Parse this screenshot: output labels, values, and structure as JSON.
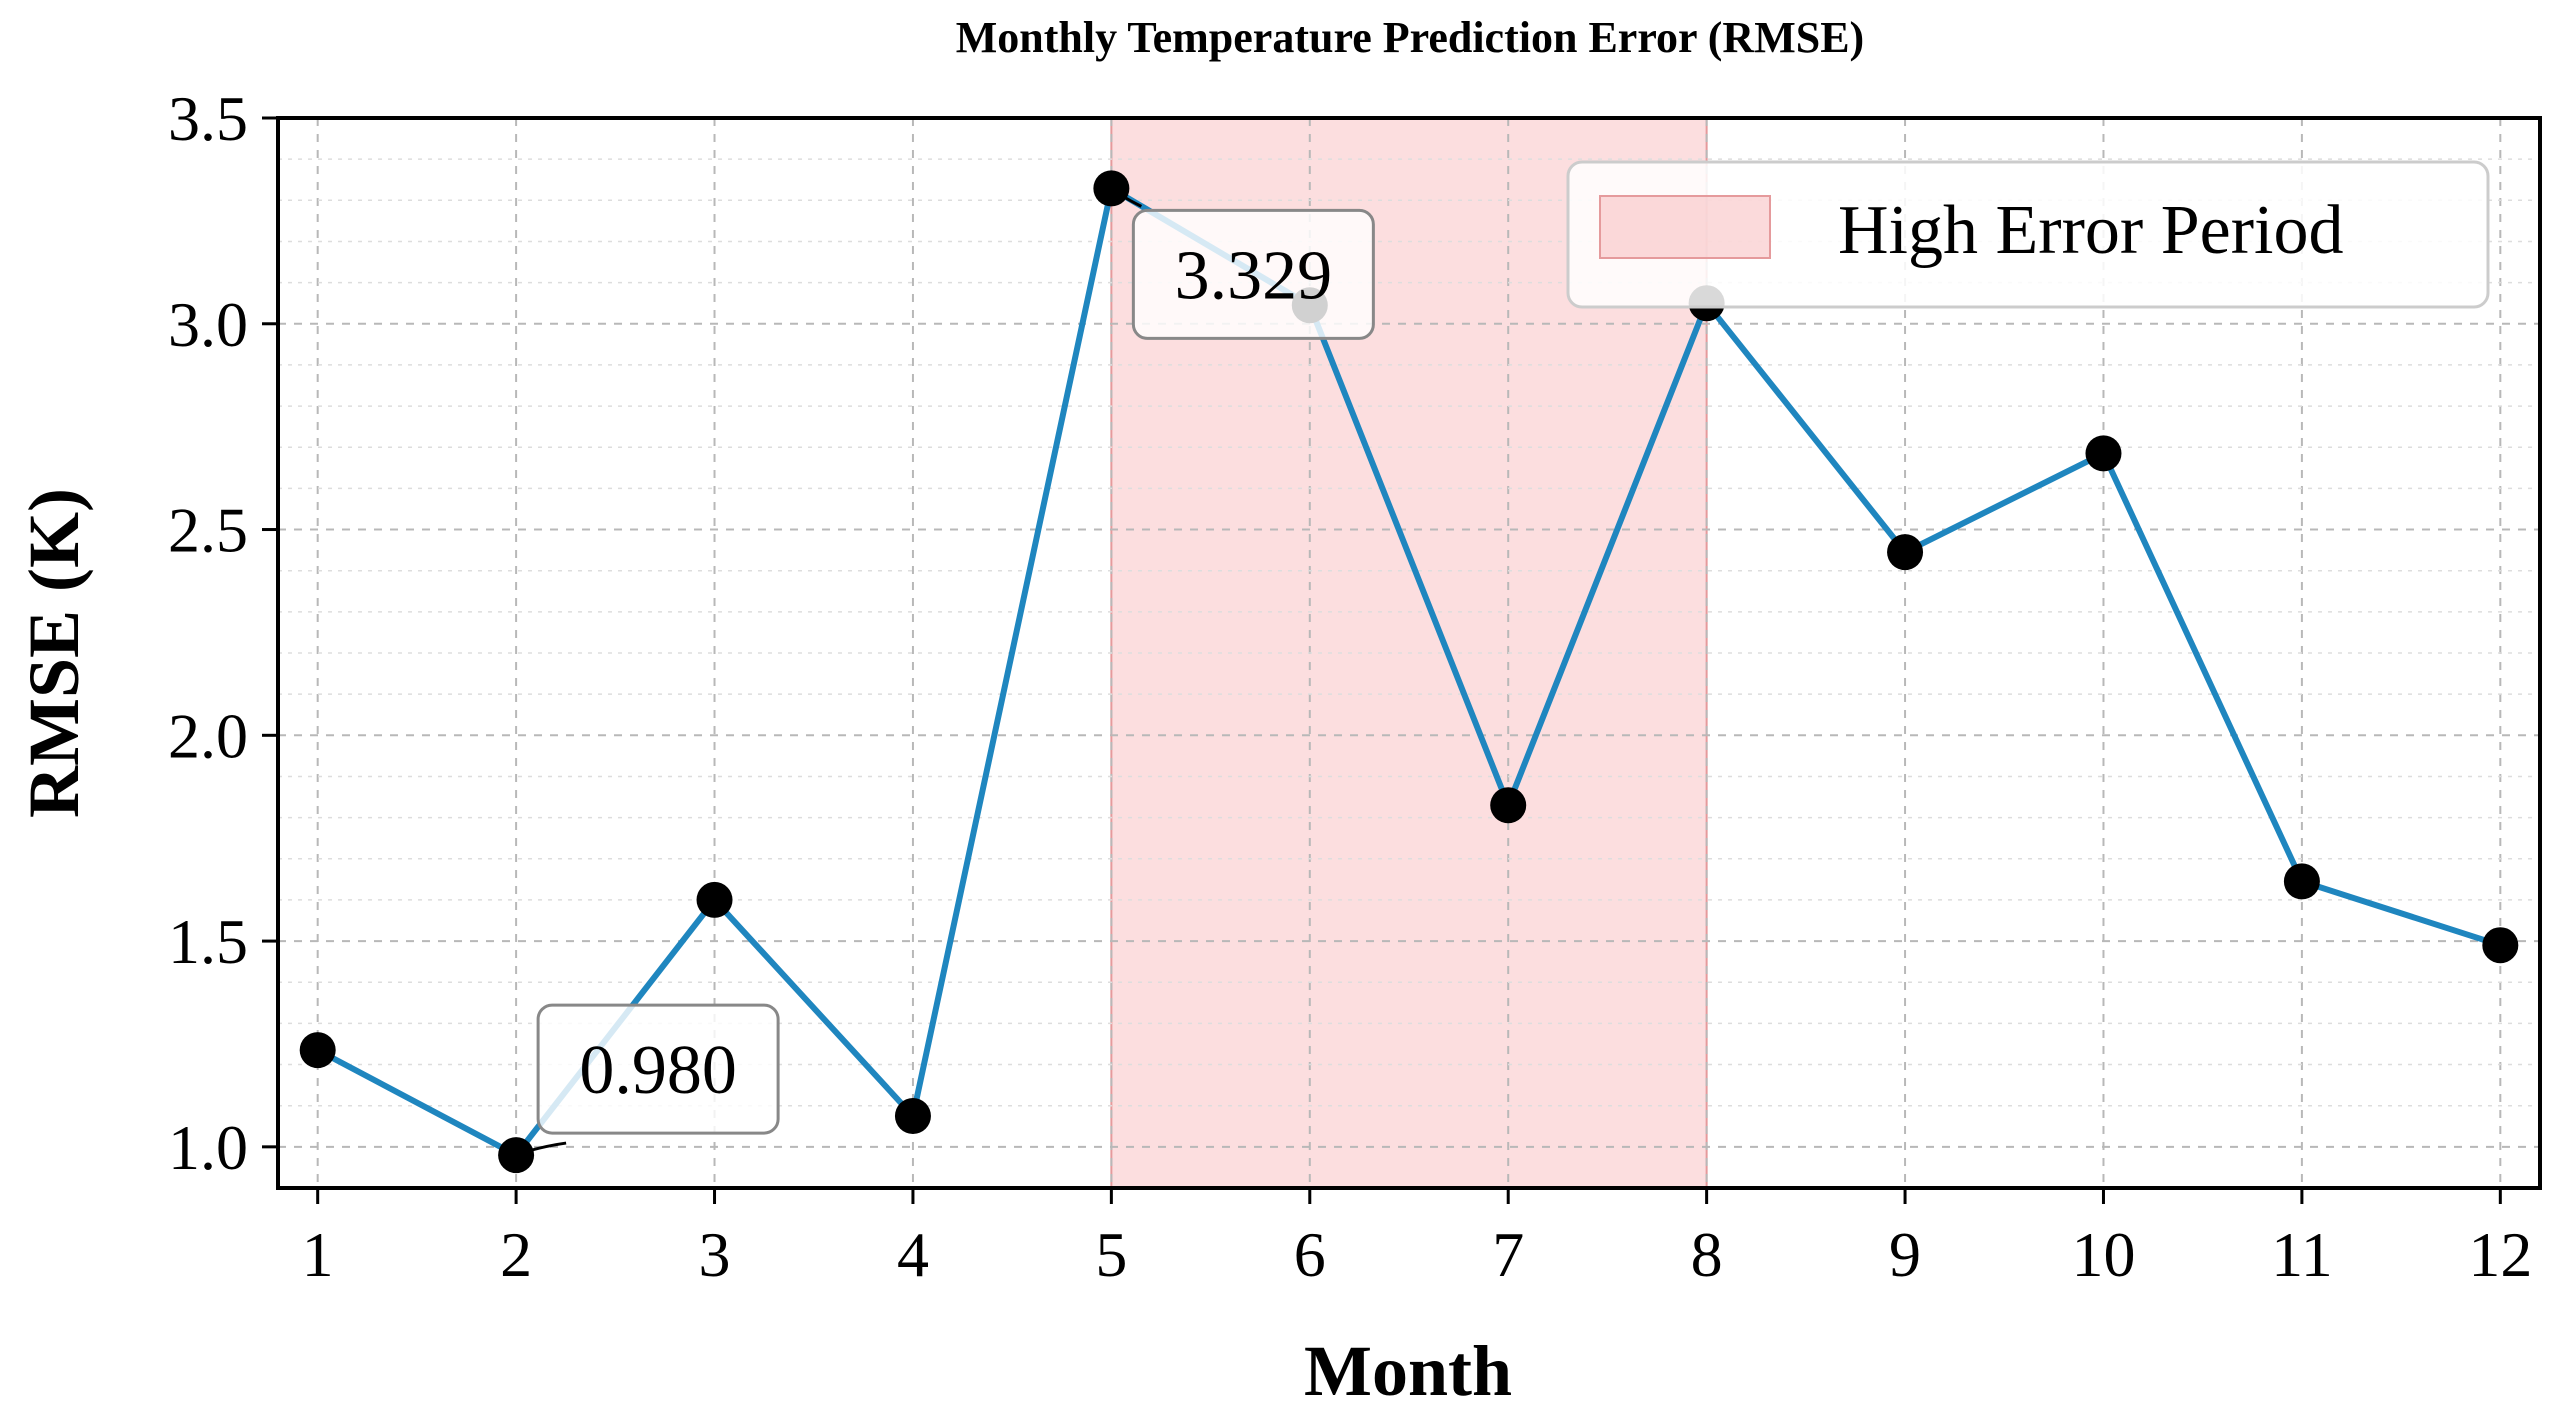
{
  "chart_data": {
    "type": "line",
    "title": "Monthly Temperature Prediction Error (RMSE)",
    "xlabel": "Month",
    "ylabel": "RMSE (K)",
    "x": [
      1,
      2,
      3,
      4,
      5,
      6,
      7,
      8,
      9,
      10,
      11,
      12
    ],
    "series": [
      {
        "values": [
          1.235,
          0.98,
          1.6,
          1.075,
          3.329,
          3.045,
          1.83,
          3.05,
          2.445,
          2.685,
          1.645,
          1.49
        ]
      }
    ],
    "xlim": [
      0.8,
      12.2
    ],
    "ylim": [
      0.9,
      3.5
    ],
    "yticks": [
      1.0,
      1.5,
      2.0,
      2.5,
      3.0,
      3.5
    ],
    "ytick_labels": [
      "1.0",
      "1.5",
      "2.0",
      "2.5",
      "3.0",
      "3.5"
    ],
    "xticks": [
      1,
      2,
      3,
      4,
      5,
      6,
      7,
      8,
      9,
      10,
      11,
      12
    ],
    "xtick_labels": [
      "1",
      "2",
      "3",
      "4",
      "5",
      "6",
      "7",
      "8",
      "9",
      "10",
      "11",
      "12"
    ],
    "shaded_region": {
      "x_start": 5,
      "x_end": 8,
      "label": "High Error Period"
    },
    "annotations": [
      {
        "x": 2,
        "y": 0.98,
        "text": "0.980"
      },
      {
        "x": 5,
        "y": 3.329,
        "text": "3.329"
      }
    ],
    "grid": true,
    "legend_position": "top-right",
    "colors": {
      "line": "#1f86bf",
      "marker": "#000000",
      "shade": "#f8b6b8"
    }
  }
}
